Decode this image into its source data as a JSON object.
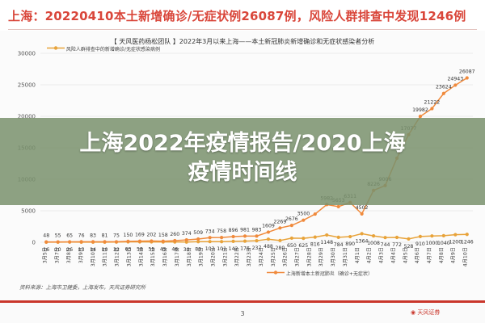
{
  "headline": "上海：20220410本土新增确诊/无症状例26087例，风险人群排查中发现1246例",
  "figure_title": "【 天风医药杨松团队 】2022年3月以来上海——本土新冠肺炎新增确诊和无症状感染者分析",
  "overlay_title_line1": "上海2022年疫情报告/2020上海",
  "overlay_title_line2": "疫情时间线",
  "source_text": "资料来源：上海市卫健委，上海发布，天风证券研究所",
  "page_number": "3",
  "brand_text": "天风证券",
  "colors": {
    "screening": "#e8a33a",
    "total": "#f08a3c",
    "grid": "#e6e6e6",
    "overlay": "#7a916e"
  },
  "chart_data": {
    "type": "line",
    "title": "2022年3月以来上海——本土新冠肺炎新增确诊和无症状感染者分析",
    "categories": [
      "3月5日",
      "3月6日",
      "3月7日",
      "3月8日",
      "3月9日",
      "3月10日",
      "3月11日",
      "3月12日",
      "3月13日",
      "3月14日",
      "3月15日",
      "3月16日",
      "3月17日",
      "3月18日",
      "3月19日",
      "3月20日",
      "3月21日",
      "3月22日",
      "3月23日",
      "3月24日",
      "3月25日",
      "3月26日",
      "3月27日",
      "3月28日",
      "3月29日",
      "3月30日",
      "3月31日",
      "4月1日",
      "4月2日",
      "4月3日",
      "4月4日",
      "4月5日",
      "4月6日",
      "4月7日",
      "4月8日",
      "4月9日",
      "4月10日"
    ],
    "tick_labels": [
      "3月5日",
      "3月7日",
      "3月8日",
      "3月9日",
      "3月10日",
      "3月11日",
      "3月12日",
      "3月13日",
      "3月14日",
      "3月15日",
      "3月16日",
      "3月17日",
      "3月18日",
      "3月19日",
      "3月20日",
      "3月21日",
      "3月22日",
      "3月23日",
      "3月24日",
      "3月25日",
      "3月26日",
      "3月27日",
      "3月28日",
      "3月29日",
      "3月30日",
      "3月31日",
      "4月1日",
      "4月2日",
      "4月3日",
      "4月4日",
      "4月5日",
      "4月6日",
      "4月7日",
      "4月8日",
      "4月9日",
      "4月10日"
    ],
    "ylim": [
      0,
      30000
    ],
    "yticks": [
      0,
      5000,
      10000,
      15000,
      20000,
      25000,
      30000
    ],
    "ytick_labels": [
      "0",
      "5000",
      "10000",
      "15000",
      "20000",
      "25000",
      "30000"
    ],
    "series": [
      {
        "name": "风险人群排查中的新增确诊/无症状感染病例",
        "color": "#e8a33a",
        "values": [
          16,
          20,
          26,
          13,
          14,
          10,
          32,
          63,
          58,
          55,
          45,
          46,
          30,
          89,
          103,
          101,
          142,
          176,
          237,
          488,
          280,
          650,
          625,
          816,
          1148,
          784,
          890,
          1364,
          1008,
          744,
          772,
          528,
          910,
          1000,
          1040,
          1200,
          1246
        ],
        "labels": [
          "16",
          "20",
          "26",
          "13",
          "14",
          "10",
          "32",
          "63",
          "58",
          "55",
          "45",
          "46",
          "30",
          "89",
          "103",
          "101",
          "142",
          "176",
          "237",
          "488",
          "280",
          "650",
          "625",
          "816",
          "1148",
          "784",
          "890",
          "1364",
          "1008",
          "744",
          "772",
          "528",
          "910",
          "1000",
          "1040",
          "1200",
          "1246"
        ]
      },
      {
        "name": "上海新增本土新冠肺炎（确诊+无症状）",
        "color": "#f08a3c",
        "values": [
          48,
          55,
          65,
          76,
          83,
          81,
          75,
          150,
          169,
          202,
          158,
          260,
          374,
          509,
          734,
          758,
          896,
          981,
          983,
          1609,
          2269,
          2676,
          3500,
          4477,
          5982,
          5653,
          6311,
          4502,
          8226,
          9006,
          13354,
          17077,
          19982,
          21222,
          23624,
          24943,
          26087
        ],
        "labels": [
          "48",
          "55",
          "65",
          "76",
          "83",
          "81",
          "75",
          "150",
          "169",
          "202",
          "158",
          "260",
          "374",
          "509",
          "734",
          "758",
          "896",
          "981",
          "983",
          "1609",
          "2269",
          "2676",
          "3500",
          "",
          "5982",
          "5653",
          "6311",
          "4502",
          "8226",
          "9006",
          "",
          "17077",
          "19982",
          "21222",
          "23624",
          "24943",
          "26087"
        ]
      }
    ],
    "legend_position": "top-left",
    "grid": true
  }
}
